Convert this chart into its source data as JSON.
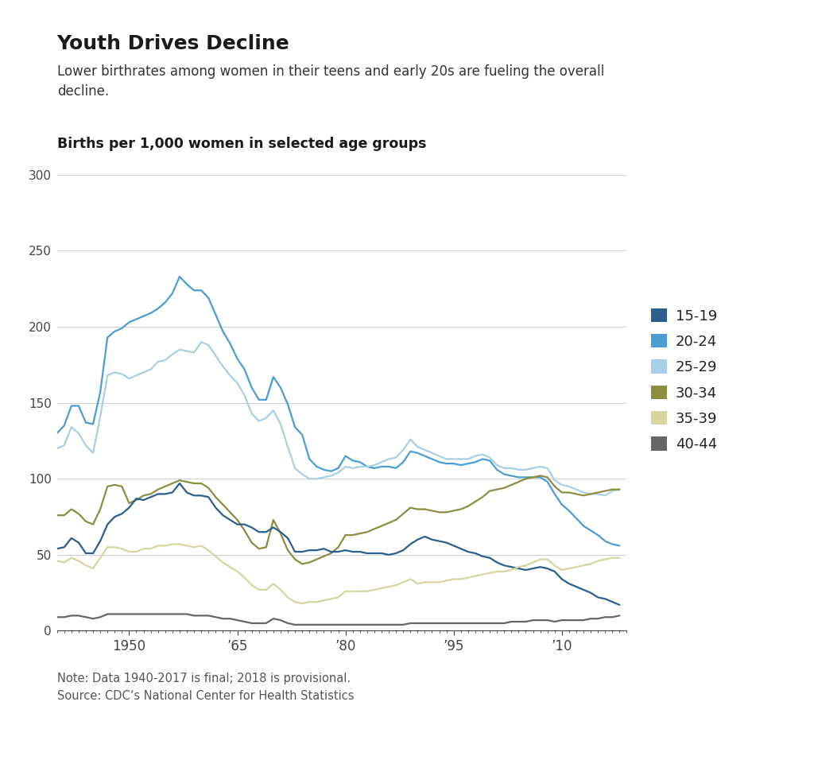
{
  "title": "Youth Drives Decline",
  "subtitle": "Lower birthrates among women in their teens and early 20s are fueling the overall\ndecline.",
  "axis_label": "Births per 1,000 women in selected age groups",
  "note": "Note: Data 1940-2017 is final; 2018 is provisional.\nSource: CDC’s National Center for Health Statistics",
  "ylim": [
    0,
    300
  ],
  "yticks": [
    0,
    50,
    100,
    150,
    200,
    250,
    300
  ],
  "xtick_labels": [
    "1950",
    "’65",
    "’80",
    "’95",
    "’10"
  ],
  "xtick_positions": [
    1950,
    1965,
    1980,
    1995,
    2010
  ],
  "xmin": 1940,
  "xmax": 2019,
  "colors": {
    "15-19": "#2b5f8e",
    "20-24": "#4a9dd4",
    "25-29": "#a8cfe8",
    "30-34": "#8c8c42",
    "35-39": "#d8d4a0",
    "40-44": "#666666"
  },
  "series": {
    "15-19": {
      "years": [
        1940,
        1941,
        1942,
        1943,
        1944,
        1945,
        1946,
        1947,
        1948,
        1949,
        1950,
        1951,
        1952,
        1953,
        1954,
        1955,
        1956,
        1957,
        1958,
        1959,
        1960,
        1961,
        1962,
        1963,
        1964,
        1965,
        1966,
        1967,
        1968,
        1969,
        1970,
        1971,
        1972,
        1973,
        1974,
        1975,
        1976,
        1977,
        1978,
        1979,
        1980,
        1981,
        1982,
        1983,
        1984,
        1985,
        1986,
        1987,
        1988,
        1989,
        1990,
        1991,
        1992,
        1993,
        1994,
        1995,
        1996,
        1997,
        1998,
        1999,
        2000,
        2001,
        2002,
        2003,
        2004,
        2005,
        2006,
        2007,
        2008,
        2009,
        2010,
        2011,
        2012,
        2013,
        2014,
        2015,
        2016,
        2017,
        2018
      ],
      "values": [
        54,
        55,
        61,
        58,
        51,
        51,
        59,
        70,
        75,
        77,
        81,
        87,
        86,
        88,
        90,
        90,
        91,
        97,
        91,
        89,
        89,
        88,
        81,
        76,
        73,
        70,
        70,
        68,
        65,
        65,
        68,
        65,
        61,
        52,
        52,
        53,
        53,
        54,
        52,
        52,
        53,
        52,
        52,
        51,
        51,
        51,
        50,
        51,
        53,
        57,
        60,
        62,
        60,
        59,
        58,
        56,
        54,
        52,
        51,
        49,
        48,
        45,
        43,
        42,
        41,
        40,
        41,
        42,
        41,
        39,
        34,
        31,
        29,
        27,
        25,
        22,
        21,
        19,
        17
      ]
    },
    "20-24": {
      "years": [
        1940,
        1941,
        1942,
        1943,
        1944,
        1945,
        1946,
        1947,
        1948,
        1949,
        1950,
        1951,
        1952,
        1953,
        1954,
        1955,
        1956,
        1957,
        1958,
        1959,
        1960,
        1961,
        1962,
        1963,
        1964,
        1965,
        1966,
        1967,
        1968,
        1969,
        1970,
        1971,
        1972,
        1973,
        1974,
        1975,
        1976,
        1977,
        1978,
        1979,
        1980,
        1981,
        1982,
        1983,
        1984,
        1985,
        1986,
        1987,
        1988,
        1989,
        1990,
        1991,
        1992,
        1993,
        1994,
        1995,
        1996,
        1997,
        1998,
        1999,
        2000,
        2001,
        2002,
        2003,
        2004,
        2005,
        2006,
        2007,
        2008,
        2009,
        2010,
        2011,
        2012,
        2013,
        2014,
        2015,
        2016,
        2017,
        2018
      ],
      "values": [
        130,
        135,
        148,
        148,
        137,
        136,
        157,
        193,
        197,
        199,
        203,
        205,
        207,
        209,
        212,
        216,
        222,
        233,
        228,
        224,
        224,
        219,
        208,
        197,
        189,
        179,
        172,
        160,
        152,
        152,
        167,
        160,
        149,
        134,
        129,
        113,
        108,
        106,
        105,
        107,
        115,
        112,
        111,
        108,
        107,
        108,
        108,
        107,
        111,
        118,
        117,
        115,
        113,
        111,
        110,
        110,
        109,
        110,
        111,
        113,
        112,
        106,
        103,
        102,
        101,
        101,
        101,
        101,
        98,
        90,
        83,
        79,
        74,
        69,
        66,
        63,
        59,
        57,
        56
      ]
    },
    "25-29": {
      "years": [
        1940,
        1941,
        1942,
        1943,
        1944,
        1945,
        1946,
        1947,
        1948,
        1949,
        1950,
        1951,
        1952,
        1953,
        1954,
        1955,
        1956,
        1957,
        1958,
        1959,
        1960,
        1961,
        1962,
        1963,
        1964,
        1965,
        1966,
        1967,
        1968,
        1969,
        1970,
        1971,
        1972,
        1973,
        1974,
        1975,
        1976,
        1977,
        1978,
        1979,
        1980,
        1981,
        1982,
        1983,
        1984,
        1985,
        1986,
        1987,
        1988,
        1989,
        1990,
        1991,
        1992,
        1993,
        1994,
        1995,
        1996,
        1997,
        1998,
        1999,
        2000,
        2001,
        2002,
        2003,
        2004,
        2005,
        2006,
        2007,
        2008,
        2009,
        2010,
        2011,
        2012,
        2013,
        2014,
        2015,
        2016,
        2017,
        2018
      ],
      "values": [
        120,
        122,
        134,
        130,
        122,
        117,
        141,
        168,
        170,
        169,
        166,
        168,
        170,
        172,
        177,
        178,
        182,
        185,
        184,
        183,
        190,
        188,
        181,
        174,
        168,
        163,
        155,
        143,
        138,
        140,
        145,
        136,
        121,
        107,
        103,
        100,
        100,
        101,
        102,
        104,
        108,
        107,
        108,
        108,
        109,
        111,
        113,
        114,
        119,
        126,
        121,
        119,
        117,
        115,
        113,
        113,
        113,
        113,
        115,
        116,
        114,
        109,
        107,
        107,
        106,
        106,
        107,
        108,
        107,
        99,
        96,
        95,
        93,
        91,
        90,
        90,
        89,
        92,
        93
      ]
    },
    "30-34": {
      "years": [
        1940,
        1941,
        1942,
        1943,
        1944,
        1945,
        1946,
        1947,
        1948,
        1949,
        1950,
        1951,
        1952,
        1953,
        1954,
        1955,
        1956,
        1957,
        1958,
        1959,
        1960,
        1961,
        1962,
        1963,
        1964,
        1965,
        1966,
        1967,
        1968,
        1969,
        1970,
        1971,
        1972,
        1973,
        1974,
        1975,
        1976,
        1977,
        1978,
        1979,
        1980,
        1981,
        1982,
        1983,
        1984,
        1985,
        1986,
        1987,
        1988,
        1989,
        1990,
        1991,
        1992,
        1993,
        1994,
        1995,
        1996,
        1997,
        1998,
        1999,
        2000,
        2001,
        2002,
        2003,
        2004,
        2005,
        2006,
        2007,
        2008,
        2009,
        2010,
        2011,
        2012,
        2013,
        2014,
        2015,
        2016,
        2017,
        2018
      ],
      "values": [
        76,
        76,
        80,
        77,
        72,
        70,
        80,
        95,
        96,
        95,
        84,
        86,
        89,
        90,
        93,
        95,
        97,
        99,
        98,
        97,
        97,
        94,
        88,
        83,
        78,
        73,
        66,
        58,
        54,
        55,
        73,
        64,
        53,
        47,
        44,
        45,
        47,
        49,
        51,
        55,
        63,
        63,
        64,
        65,
        67,
        69,
        71,
        73,
        77,
        81,
        80,
        80,
        79,
        78,
        78,
        79,
        80,
        82,
        85,
        88,
        92,
        93,
        94,
        96,
        98,
        100,
        101,
        102,
        101,
        95,
        91,
        91,
        90,
        89,
        90,
        91,
        92,
        93,
        93
      ]
    },
    "35-39": {
      "years": [
        1940,
        1941,
        1942,
        1943,
        1944,
        1945,
        1946,
        1947,
        1948,
        1949,
        1950,
        1951,
        1952,
        1953,
        1954,
        1955,
        1956,
        1957,
        1958,
        1959,
        1960,
        1961,
        1962,
        1963,
        1964,
        1965,
        1966,
        1967,
        1968,
        1969,
        1970,
        1971,
        1972,
        1973,
        1974,
        1975,
        1976,
        1977,
        1978,
        1979,
        1980,
        1981,
        1982,
        1983,
        1984,
        1985,
        1986,
        1987,
        1988,
        1989,
        1990,
        1991,
        1992,
        1993,
        1994,
        1995,
        1996,
        1997,
        1998,
        1999,
        2000,
        2001,
        2002,
        2003,
        2004,
        2005,
        2006,
        2007,
        2008,
        2009,
        2010,
        2011,
        2012,
        2013,
        2014,
        2015,
        2016,
        2017,
        2018
      ],
      "values": [
        46,
        45,
        48,
        46,
        43,
        41,
        48,
        55,
        55,
        54,
        52,
        52,
        54,
        54,
        56,
        56,
        57,
        57,
        56,
        55,
        56,
        53,
        49,
        45,
        42,
        39,
        35,
        30,
        27,
        27,
        31,
        27,
        22,
        19,
        18,
        19,
        19,
        20,
        21,
        22,
        26,
        26,
        26,
        26,
        27,
        28,
        29,
        30,
        32,
        34,
        31,
        32,
        32,
        32,
        33,
        34,
        34,
        35,
        36,
        37,
        38,
        39,
        39,
        40,
        42,
        43,
        45,
        47,
        47,
        43,
        40,
        41,
        42,
        43,
        44,
        46,
        47,
        48,
        48
      ]
    },
    "40-44": {
      "years": [
        1940,
        1941,
        1942,
        1943,
        1944,
        1945,
        1946,
        1947,
        1948,
        1949,
        1950,
        1951,
        1952,
        1953,
        1954,
        1955,
        1956,
        1957,
        1958,
        1959,
        1960,
        1961,
        1962,
        1963,
        1964,
        1965,
        1966,
        1967,
        1968,
        1969,
        1970,
        1971,
        1972,
        1973,
        1974,
        1975,
        1976,
        1977,
        1978,
        1979,
        1980,
        1981,
        1982,
        1983,
        1984,
        1985,
        1986,
        1987,
        1988,
        1989,
        1990,
        1991,
        1992,
        1993,
        1994,
        1995,
        1996,
        1997,
        1998,
        1999,
        2000,
        2001,
        2002,
        2003,
        2004,
        2005,
        2006,
        2007,
        2008,
        2009,
        2010,
        2011,
        2012,
        2013,
        2014,
        2015,
        2016,
        2017,
        2018
      ],
      "values": [
        9,
        9,
        10,
        10,
        9,
        8,
        9,
        11,
        11,
        11,
        11,
        11,
        11,
        11,
        11,
        11,
        11,
        11,
        11,
        10,
        10,
        10,
        9,
        8,
        8,
        7,
        6,
        5,
        5,
        5,
        8,
        7,
        5,
        4,
        4,
        4,
        4,
        4,
        4,
        4,
        4,
        4,
        4,
        4,
        4,
        4,
        4,
        4,
        4,
        5,
        5,
        5,
        5,
        5,
        5,
        5,
        5,
        5,
        5,
        5,
        5,
        5,
        5,
        6,
        6,
        6,
        7,
        7,
        7,
        6,
        7,
        7,
        7,
        7,
        8,
        8,
        9,
        9,
        10
      ]
    }
  }
}
